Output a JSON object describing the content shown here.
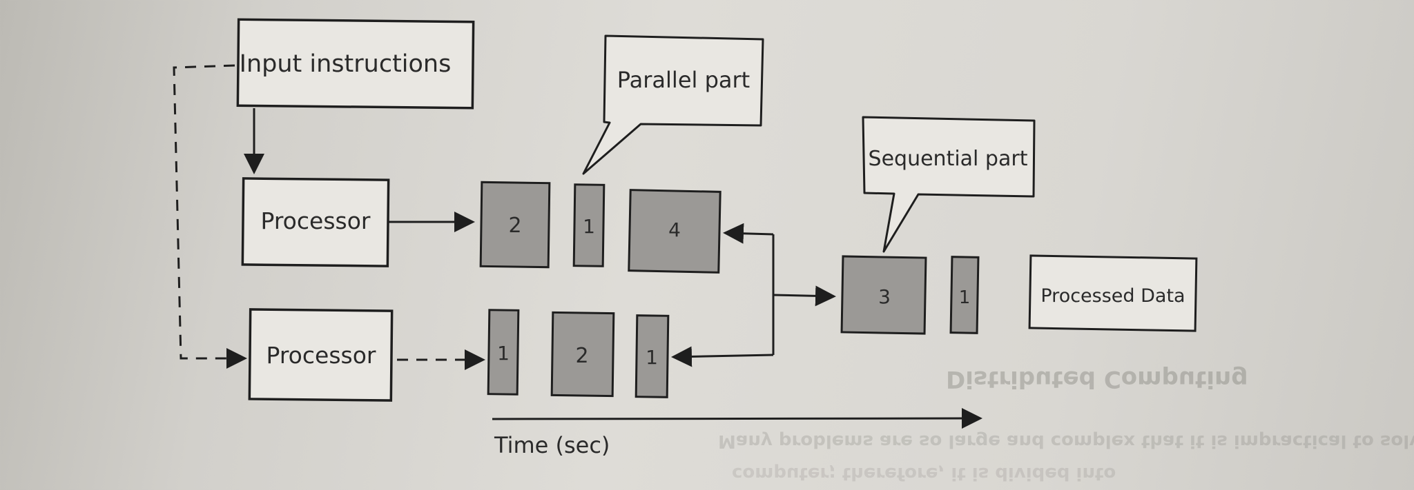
{
  "diagram": {
    "input_box": {
      "label": "Input instructions"
    },
    "processors": [
      {
        "label": "Processor"
      },
      {
        "label": "Processor"
      }
    ],
    "row1_tasks": [
      "2",
      "1",
      "4"
    ],
    "row2_tasks": [
      "1",
      "2",
      "1"
    ],
    "sequential_tasks": [
      "3",
      "1"
    ],
    "output_box": {
      "label": "Processed Data"
    },
    "callouts": {
      "parallel": "Parallel part",
      "sequential": "Sequential part"
    },
    "time_axis": {
      "label": "Time (sec)"
    }
  },
  "bleed_through": {
    "heading": "Distributed Computing",
    "line1": "Many problems are so large and complex that it is impractical to solve them on a",
    "line2": "computer; therefore, it is divided into"
  },
  "colors": {
    "task_fill": "#9b9996",
    "stroke": "#1e1e1e",
    "box_fill": "#e9e7e2"
  }
}
